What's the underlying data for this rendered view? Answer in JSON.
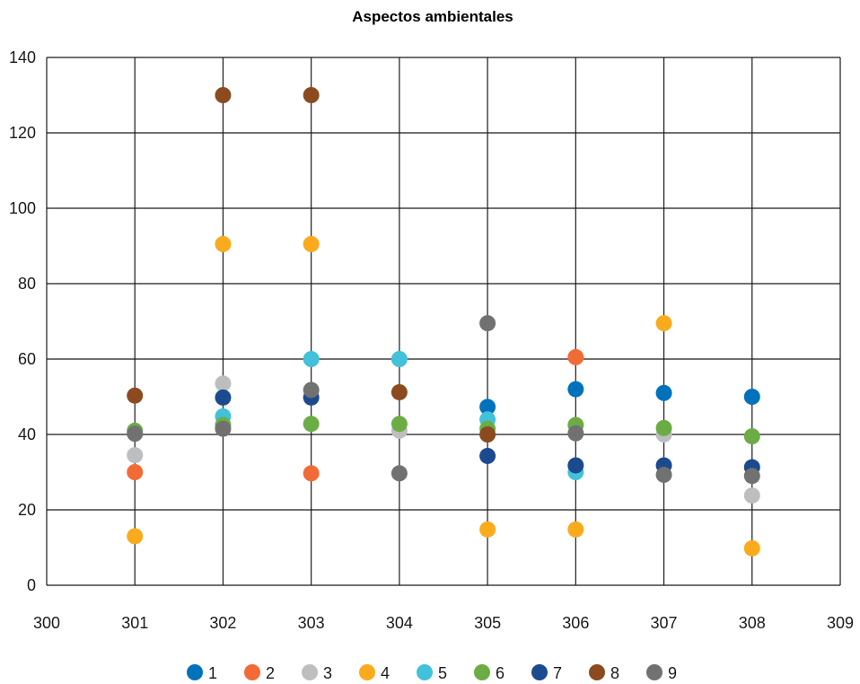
{
  "chart_data": {
    "type": "scatter",
    "title": "Aspectos ambientales",
    "xlabel": "",
    "ylabel": "",
    "xlim": [
      300,
      309
    ],
    "ylim": [
      0,
      140
    ],
    "xticks": [
      300,
      301,
      302,
      303,
      304,
      305,
      306,
      307,
      308,
      309
    ],
    "yticks": [
      0,
      20,
      40,
      60,
      80,
      100,
      120,
      140
    ],
    "grid": true,
    "legend_position": "bottom",
    "series": [
      {
        "name": "1",
        "color": "#0072BC",
        "points": [
          [
            305,
            47.3
          ],
          [
            306,
            52
          ],
          [
            307,
            51
          ],
          [
            308,
            50
          ]
        ]
      },
      {
        "name": "2",
        "color": "#F26A36",
        "points": [
          [
            301,
            30
          ],
          [
            303,
            29.7
          ],
          [
            306,
            60.5
          ]
        ]
      },
      {
        "name": "3",
        "color": "#BCBEC0",
        "points": [
          [
            301,
            34.5
          ],
          [
            302,
            53.5
          ],
          [
            304,
            41
          ],
          [
            307,
            40
          ],
          [
            308,
            23.8
          ]
        ]
      },
      {
        "name": "4",
        "color": "#FAAB1D",
        "points": [
          [
            301,
            13
          ],
          [
            302,
            90.5
          ],
          [
            303,
            90.5
          ],
          [
            305,
            14.8
          ],
          [
            306,
            14.8
          ],
          [
            307,
            69.5
          ],
          [
            308,
            9.8
          ]
        ]
      },
      {
        "name": "5",
        "color": "#42C1DA",
        "points": [
          [
            302,
            44.8
          ],
          [
            303,
            60
          ],
          [
            304,
            60
          ],
          [
            305,
            44
          ],
          [
            306,
            30
          ]
        ]
      },
      {
        "name": "6",
        "color": "#6BAD44",
        "points": [
          [
            301,
            41
          ],
          [
            302,
            42.5
          ],
          [
            303,
            42.8
          ],
          [
            304,
            42.8
          ],
          [
            305,
            41.5
          ],
          [
            306,
            42.5
          ],
          [
            307,
            41.7
          ],
          [
            308,
            39.5
          ]
        ]
      },
      {
        "name": "7",
        "color": "#1B4A8E",
        "points": [
          [
            302,
            49.8
          ],
          [
            303,
            49.8
          ],
          [
            305,
            34.3
          ],
          [
            306,
            31.8
          ],
          [
            307,
            31.8
          ],
          [
            308,
            31.3
          ]
        ]
      },
      {
        "name": "8",
        "color": "#8B4B1F",
        "points": [
          [
            301,
            50.3
          ],
          [
            302,
            130
          ],
          [
            303,
            130
          ],
          [
            304,
            51.2
          ],
          [
            305,
            40
          ]
        ]
      },
      {
        "name": "9",
        "color": "#717171",
        "points": [
          [
            301,
            40.2
          ],
          [
            302,
            41.5
          ],
          [
            303,
            51.8
          ],
          [
            304,
            29.7
          ],
          [
            305,
            69.5
          ],
          [
            306,
            40.3
          ],
          [
            307,
            29.3
          ],
          [
            308,
            29
          ]
        ]
      }
    ]
  }
}
